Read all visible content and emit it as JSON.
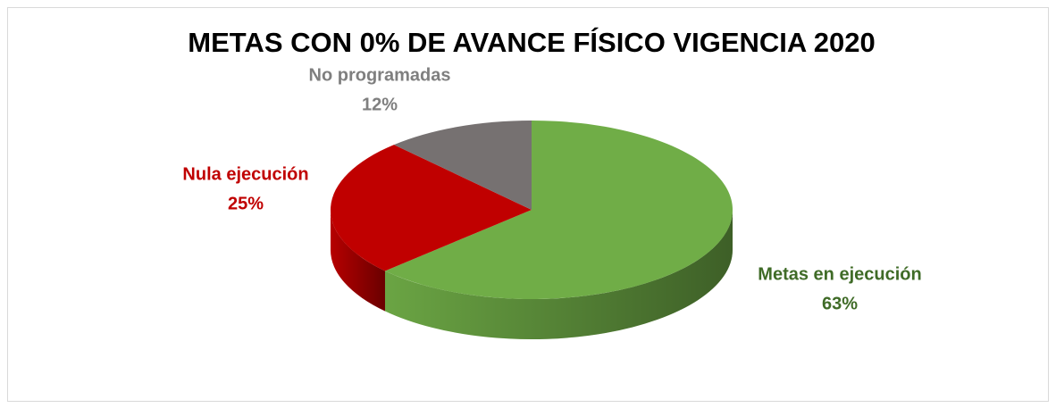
{
  "chart_data": {
    "type": "pie",
    "title": "METAS CON 0% DE AVANCE FÍSICO VIGENCIA 2020",
    "categories": [
      "Metas en ejecución",
      "Nula ejecución",
      "No programadas"
    ],
    "values": [
      63,
      25,
      12
    ],
    "value_labels": [
      "63%",
      "25%",
      "12%"
    ],
    "colors": [
      "#70ad47",
      "#c00000",
      "#767171"
    ],
    "label_colors": [
      "#3f6b27",
      "#c00000",
      "#7f7f7f"
    ]
  }
}
